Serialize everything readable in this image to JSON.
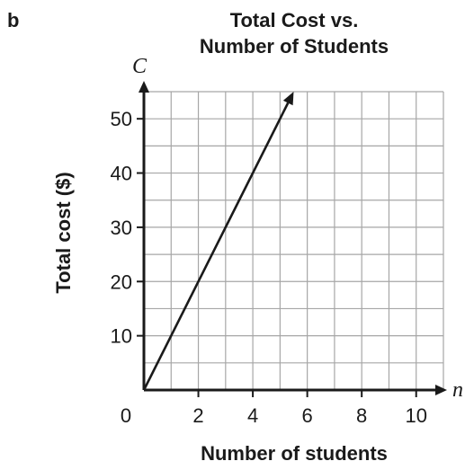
{
  "panel_label": "b",
  "chart_data": {
    "type": "line",
    "title_line1": "Total Cost vs.",
    "title_line2": "Number of Students",
    "xlabel": "Number of students",
    "ylabel": "Total cost ($)",
    "x_axis_var": "n",
    "y_axis_var": "C",
    "origin_label": "0",
    "xlim": [
      0,
      11
    ],
    "ylim": [
      0,
      55
    ],
    "x_grid_step": 1,
    "y_grid_step": 5,
    "x_ticks": [
      "2",
      "4",
      "6",
      "8",
      "10"
    ],
    "x_tick_values": [
      2,
      4,
      6,
      8,
      10
    ],
    "y_ticks": [
      "10",
      "20",
      "30",
      "40",
      "50"
    ],
    "y_tick_values": [
      10,
      20,
      30,
      40,
      50
    ],
    "grid": true,
    "series": [
      {
        "x": [
          0,
          5.5
        ],
        "y": [
          0,
          55
        ]
      }
    ],
    "line_color": "#1a1a1a",
    "grid_color": "#a6a6a6"
  }
}
